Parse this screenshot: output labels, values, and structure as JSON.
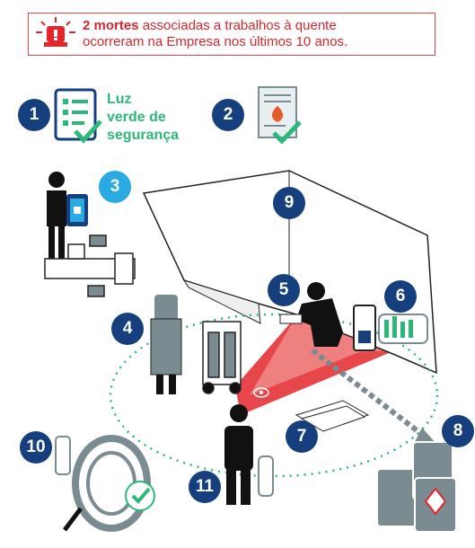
{
  "alert": {
    "count_bold": "2 mortes",
    "text_line1": "associadas a trabalhos à quente",
    "text_line2": "ocorreram na Empresa nos últimos 10 anos."
  },
  "step1_label": [
    "Luz",
    "verde de",
    "segurança"
  ],
  "badges": [
    "1",
    "2",
    "3",
    "4",
    "5",
    "6",
    "7",
    "8",
    "9",
    "10",
    "11"
  ],
  "colors": {
    "alert_red": "#e8424a",
    "navy": "#153f7d",
    "cyan": "#2aaae2",
    "green": "#2db87a",
    "danger_red": "#e3262c"
  }
}
